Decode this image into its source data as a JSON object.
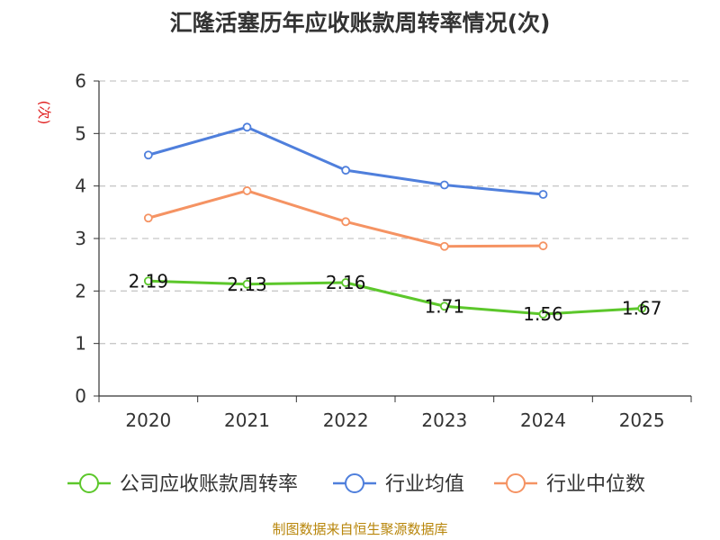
{
  "chart_data": {
    "type": "line",
    "title": "汇隆活塞历年应收账款周转率情况(次)",
    "ylabel": "(次)",
    "xlabel": "",
    "categories": [
      "2020",
      "2021",
      "2022",
      "2023",
      "2024",
      "2025"
    ],
    "yticks": [
      "0",
      "1",
      "2",
      "3",
      "4",
      "5",
      "6"
    ],
    "ylim": [
      0,
      6
    ],
    "grid": true,
    "legend_position": "bottom",
    "series": [
      {
        "name": "公司应收账款周转率",
        "color": "#5cc72b",
        "values": [
          2.19,
          2.13,
          2.16,
          1.71,
          1.56,
          1.67
        ],
        "labels": [
          "2.19",
          "2.13",
          "2.16",
          "1.71",
          "1.56",
          "1.67"
        ]
      },
      {
        "name": "行业均值",
        "color": "#4f7fdc",
        "values": [
          4.59,
          5.12,
          4.3,
          4.02,
          3.84,
          null
        ]
      },
      {
        "name": "行业中位数",
        "color": "#f59363",
        "values": [
          3.39,
          3.91,
          3.32,
          2.85,
          2.86,
          null
        ]
      }
    ]
  },
  "source": "制图数据来自恒生聚源数据库",
  "ylabel_color": "#e02020"
}
